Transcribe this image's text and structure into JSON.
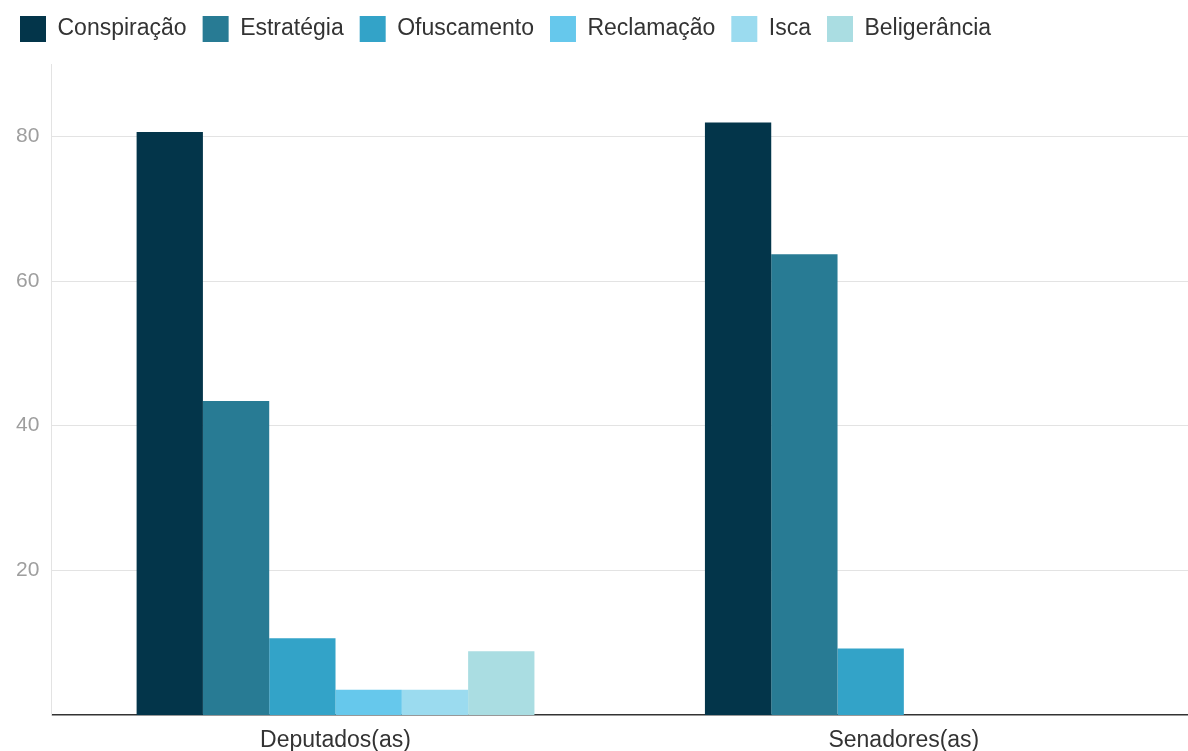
{
  "chart_data": {
    "type": "bar",
    "categories": [
      "Deputados(as)",
      "Senadores(as)"
    ],
    "series": [
      {
        "name": "Conspiração",
        "color": "#03354a",
        "values": [
          80.6,
          81.9
        ]
      },
      {
        "name": "Estratégia",
        "color": "#287b94",
        "values": [
          43.4,
          63.7
        ]
      },
      {
        "name": "Ofuscamento",
        "color": "#33a3c8",
        "values": [
          10.6,
          9.2
        ]
      },
      {
        "name": "Reclamação",
        "color": "#66c8ec",
        "values": [
          3.5,
          null
        ]
      },
      {
        "name": "Isca",
        "color": "#9bdbef",
        "values": [
          3.5,
          null
        ]
      },
      {
        "name": "Beligerância",
        "color": "#aadde2",
        "values": [
          8.8,
          null
        ]
      }
    ],
    "ylim": [
      0,
      90
    ],
    "yticks": [
      20,
      40,
      60,
      80
    ],
    "grid": "y",
    "legend": "top left"
  }
}
